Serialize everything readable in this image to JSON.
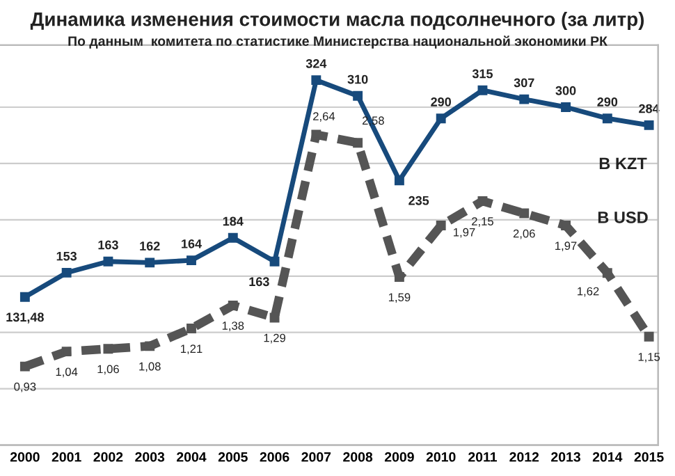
{
  "chart_data": {
    "type": "line",
    "title": "Динамика изменения стоимости масла подсолнечного (за литр)",
    "subtitle": "По данным  комитета по статистике Министерства национальной экономики РК",
    "categories": [
      "2000",
      "2001",
      "2002",
      "2003",
      "2004",
      "2005",
      "2006",
      "2007",
      "2008",
      "2009",
      "2010",
      "2011",
      "2012",
      "2013",
      "2014",
      "2015"
    ],
    "series": [
      {
        "name": "В KZT",
        "color": "#174a7c",
        "line_style": "solid",
        "values": [
          131.48,
          153,
          163,
          162,
          164,
          184,
          163,
          324,
          310,
          235,
          290,
          315,
          307,
          300,
          290,
          284
        ],
        "value_labels": [
          "131,48",
          "153",
          "163",
          "162",
          "164",
          "184",
          "163",
          "324",
          "310",
          "235",
          "290",
          "315",
          "307",
          "300",
          "290",
          "284"
        ]
      },
      {
        "name": "В USD",
        "color": "#555555",
        "line_style": "dashed",
        "axis": "y2",
        "values": [
          0.93,
          1.04,
          1.06,
          1.08,
          1.21,
          1.38,
          1.29,
          2.64,
          2.58,
          1.59,
          1.97,
          2.15,
          2.06,
          1.97,
          1.62,
          1.15
        ],
        "value_labels": [
          "0,93",
          "1,04",
          "1,06",
          "1,08",
          "1,21",
          "1,38",
          "1,29",
          "2,64",
          "2,58",
          "1,59",
          "1,97",
          "2,15",
          "2,06",
          "1,97",
          "1,62",
          "1,15"
        ]
      }
    ],
    "ylim": [
      0,
      355
    ],
    "yticks": [
      {
        "value": 0,
        "label": null
      },
      {
        "value": 50,
        "label": null
      },
      {
        "value": 100,
        "label": null
      },
      {
        "value": 150,
        "label": null
      },
      {
        "value": 200,
        "label": null
      },
      {
        "value": 250,
        "label": null
      },
      {
        "value": 300,
        "label": null
      }
    ],
    "y2lim": [
      0.35,
      3.3
    ],
    "tick_labels": "x",
    "grid": "y",
    "marker": "square",
    "legend": false
  }
}
